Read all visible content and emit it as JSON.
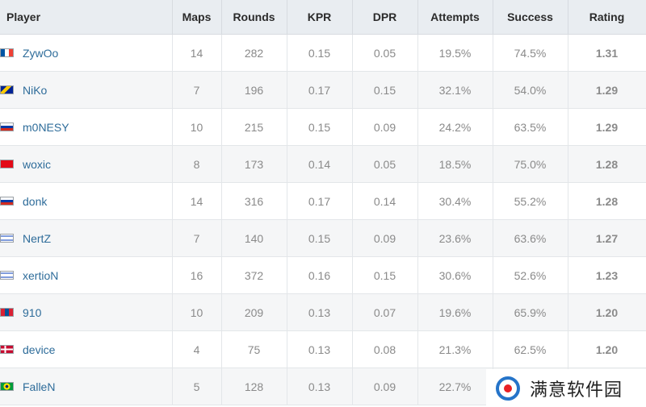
{
  "headers": {
    "player": "Player",
    "maps": "Maps",
    "rounds": "Rounds",
    "kpr": "KPR",
    "dpr": "DPR",
    "attempts": "Attempts",
    "success": "Success",
    "rating": "Rating"
  },
  "rows": [
    {
      "name": "ZywOo",
      "flag": "france-flag-icon",
      "flag_colors": [
        "#0055a4",
        "#ffffff",
        "#ef4135"
      ],
      "flag_dir": "vertical",
      "maps": "14",
      "rounds": "282",
      "kpr": "0.15",
      "dpr": "0.05",
      "attempts": "19.5%",
      "success": "74.5%",
      "rating": "1.31"
    },
    {
      "name": "NiKo",
      "flag": "bosnia-flag-icon",
      "flag_colors": [
        "#002395",
        "#fecb00",
        "#002395"
      ],
      "flag_dir": "diagonal",
      "maps": "7",
      "rounds": "196",
      "kpr": "0.17",
      "dpr": "0.15",
      "attempts": "32.1%",
      "success": "54.0%",
      "rating": "1.29"
    },
    {
      "name": "m0NESY",
      "flag": "russia-flag-icon",
      "flag_colors": [
        "#ffffff",
        "#0039a6",
        "#d52b1e"
      ],
      "flag_dir": "horizontal",
      "maps": "10",
      "rounds": "215",
      "kpr": "0.15",
      "dpr": "0.09",
      "attempts": "24.2%",
      "success": "63.5%",
      "rating": "1.29"
    },
    {
      "name": "woxic",
      "flag": "turkey-flag-icon",
      "flag_colors": [
        "#e30a17",
        "#e30a17",
        "#e30a17"
      ],
      "flag_dir": "horizontal",
      "maps": "8",
      "rounds": "173",
      "kpr": "0.14",
      "dpr": "0.05",
      "attempts": "18.5%",
      "success": "75.0%",
      "rating": "1.28"
    },
    {
      "name": "donk",
      "flag": "russia-flag-icon",
      "flag_colors": [
        "#ffffff",
        "#0039a6",
        "#d52b1e"
      ],
      "flag_dir": "horizontal",
      "maps": "14",
      "rounds": "316",
      "kpr": "0.17",
      "dpr": "0.14",
      "attempts": "30.4%",
      "success": "55.2%",
      "rating": "1.28"
    },
    {
      "name": "NertZ",
      "flag": "israel-flag-icon",
      "flag_colors": [
        "#0038b8",
        "#ffffff",
        "#0038b8"
      ],
      "flag_dir": "horizontal-thin",
      "maps": "7",
      "rounds": "140",
      "kpr": "0.15",
      "dpr": "0.09",
      "attempts": "23.6%",
      "success": "63.6%",
      "rating": "1.27"
    },
    {
      "name": "xertioN",
      "flag": "israel-flag-icon",
      "flag_colors": [
        "#0038b8",
        "#ffffff",
        "#0038b8"
      ],
      "flag_dir": "horizontal-thin",
      "maps": "16",
      "rounds": "372",
      "kpr": "0.16",
      "dpr": "0.15",
      "attempts": "30.6%",
      "success": "52.6%",
      "rating": "1.23"
    },
    {
      "name": "910",
      "flag": "mongolia-flag-icon",
      "flag_colors": [
        "#da2032",
        "#015197",
        "#da2032"
      ],
      "flag_dir": "vertical",
      "maps": "10",
      "rounds": "209",
      "kpr": "0.13",
      "dpr": "0.07",
      "attempts": "19.6%",
      "success": "65.9%",
      "rating": "1.20"
    },
    {
      "name": "device",
      "flag": "denmark-flag-icon",
      "flag_colors": [
        "#c60c30",
        "#ffffff",
        "#c60c30"
      ],
      "flag_dir": "cross",
      "maps": "4",
      "rounds": "75",
      "kpr": "0.13",
      "dpr": "0.08",
      "attempts": "21.3%",
      "success": "62.5%",
      "rating": "1.20"
    },
    {
      "name": "FalleN",
      "flag": "brazil-flag-icon",
      "flag_colors": [
        "#009c3b",
        "#ffdf00",
        "#002776"
      ],
      "flag_dir": "diamond",
      "maps": "5",
      "rounds": "128",
      "kpr": "0.13",
      "dpr": "0.09",
      "attempts": "22.7%",
      "success": "",
      "rating": ""
    }
  ],
  "watermark": {
    "text": "满意软件园"
  }
}
